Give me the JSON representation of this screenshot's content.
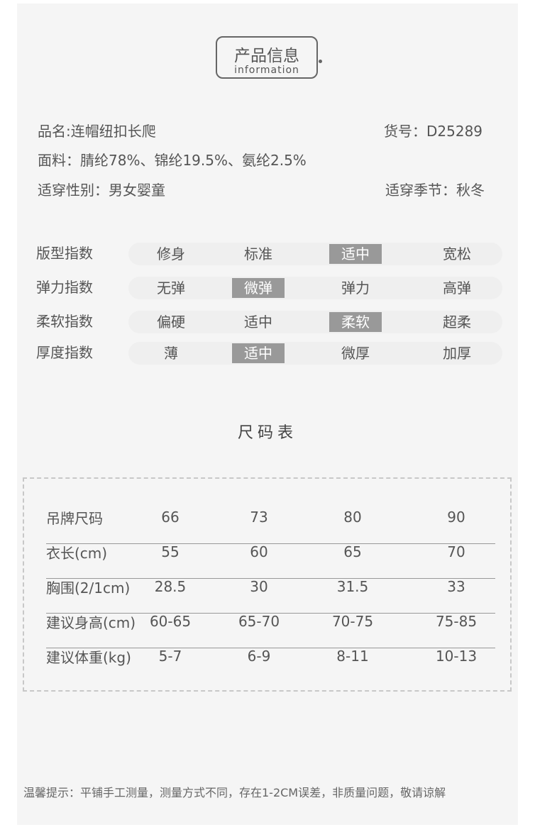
{
  "header": {
    "title_cn": "产品信息",
    "title_en": "information"
  },
  "product": {
    "name": "品名:连帽纽扣长爬",
    "sku": "货号：D25289",
    "material": "面料：腈纶78%、锦纶19.5%、氨纶2.5%",
    "gender": "适穿性别：男女婴童",
    "season": "适穿季节：秋冬"
  },
  "indices": [
    {
      "label": "版型指数",
      "options": [
        "修身",
        "标准",
        "适中",
        "宽松"
      ],
      "selected": 2
    },
    {
      "label": "弹力指数",
      "options": [
        "无弹",
        "微弹",
        "弹力",
        "高弹"
      ],
      "selected": 1
    },
    {
      "label": "柔软指数",
      "options": [
        "偏硬",
        "适中",
        "柔软",
        "超柔"
      ],
      "selected": 2
    },
    {
      "label": "厚度指数",
      "options": [
        "薄",
        "适中",
        "微厚",
        "加厚"
      ],
      "selected": 1
    }
  ],
  "size_chart": {
    "title": "尺码表",
    "rows": [
      [
        "吊牌尺码",
        "66",
        "73",
        "80",
        "90"
      ],
      [
        "衣长(cm)",
        "55",
        "60",
        "65",
        "70"
      ],
      [
        "胸围(2/1cm)",
        "28.5",
        "30",
        "31.5",
        "33"
      ],
      [
        "建议身高(cm)",
        "60-65",
        "65-70",
        "70-75",
        "75-85"
      ],
      [
        "建议体重(kg)",
        "5-7",
        "6-9",
        "8-11",
        "10-13"
      ]
    ]
  },
  "tip": "温馨提示：平铺手工测量，测量方式不同，存在1-2CM误差，非质量问题，敬请谅解",
  "colors": {
    "background": "#f5f5f5",
    "selected": "#999999",
    "text": "#555555"
  }
}
